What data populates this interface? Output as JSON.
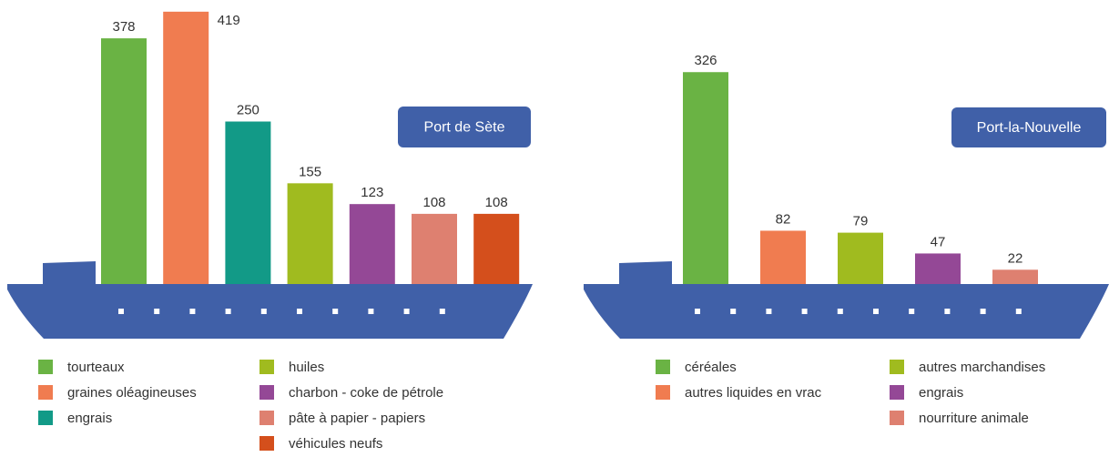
{
  "chart_data": [
    {
      "type": "bar",
      "title": "Port de Sète",
      "categories": [
        "tourteaux",
        "graines oléagineuses",
        "engrais",
        "huiles",
        "charbon - coke de pétrole",
        "pâte à papier - papiers",
        "véhicules neufs"
      ],
      "values": [
        378,
        419,
        250,
        155,
        123,
        108,
        108
      ],
      "colors": [
        "#6ab344",
        "#f07c50",
        "#129a87",
        "#a0bb1f",
        "#944896",
        "#de8070",
        "#d44f1c"
      ]
    },
    {
      "type": "bar",
      "title": "Port-la-Nouvelle",
      "categories": [
        "céréales",
        "autres liquides en vrac",
        "autres marchandises",
        "engrais",
        "nourriture animale"
      ],
      "values": [
        326,
        82,
        79,
        47,
        22
      ],
      "colors": [
        "#6ab344",
        "#f07c50",
        "#a0bb1f",
        "#944896",
        "#de8070"
      ]
    }
  ]
}
